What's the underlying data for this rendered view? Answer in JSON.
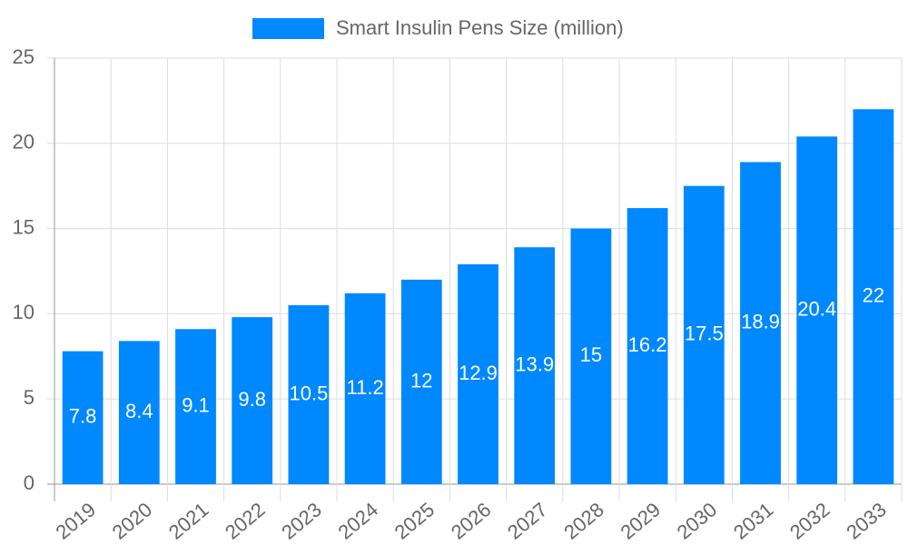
{
  "chart_data": {
    "type": "bar",
    "categories": [
      "2019",
      "2020",
      "2021",
      "2022",
      "2023",
      "2024",
      "2025",
      "2026",
      "2027",
      "2028",
      "2029",
      "2030",
      "2031",
      "2032",
      "2033"
    ],
    "series": [
      {
        "name": "Smart Insulin Pens Size (million)",
        "color": "#0088ff",
        "values": [
          7.8,
          8.4,
          9.1,
          9.8,
          10.5,
          11.2,
          12,
          12.9,
          13.9,
          15,
          16.2,
          17.5,
          18.9,
          20.4,
          22
        ]
      }
    ],
    "ylim": [
      0,
      25
    ],
    "yticks": [
      0,
      5,
      10,
      15,
      20,
      25
    ],
    "grid": true,
    "legend": "top"
  }
}
